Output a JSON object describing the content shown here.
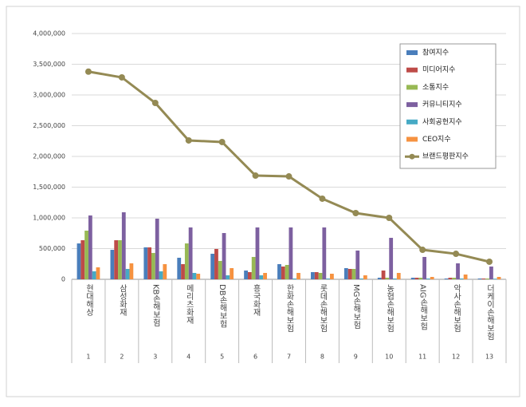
{
  "chart_data": {
    "type": "combo",
    "categories": [
      "현대해상",
      "삼성화재",
      "KB손해보험",
      "메리츠화재",
      "DB손해보험",
      "흥국화재",
      "한화손해보험",
      "롯데손해보험",
      "MG손해보험",
      "농협손해보험",
      "AIG손해보험",
      "악사손해보험",
      "더케이손해보험"
    ],
    "ranks": [
      1,
      2,
      3,
      4,
      5,
      6,
      7,
      8,
      9,
      10,
      11,
      12,
      13
    ],
    "ylim": [
      0,
      4000000
    ],
    "yticks": [
      0,
      {
        "value": 500000,
        "label": "500,000"
      },
      {
        "value": 1000000,
        "label": "1,000,000"
      },
      {
        "value": 1500000,
        "label": "1,500,000"
      },
      {
        "value": 2000000,
        "label": "2,000,000"
      },
      {
        "value": 2500000,
        "label": "2,500,000"
      },
      {
        "value": 3000000,
        "label": "3,000,000"
      },
      {
        "value": 3500000,
        "label": "3,500,000"
      },
      {
        "value": 4000000,
        "label": "4,000,000"
      }
    ],
    "grid": true,
    "legend": "upper right",
    "series": [
      {
        "name": "참여지수",
        "type": "bar",
        "color": "#4a7ebb",
        "values": [
          584000,
          480000,
          520000,
          351000,
          416000,
          143000,
          247000,
          117000,
          182000,
          26000,
          26000,
          13000,
          13000
        ]
      },
      {
        "name": "미디어지수",
        "type": "bar",
        "color": "#be4b48",
        "values": [
          636000,
          636000,
          520000,
          247000,
          494000,
          117000,
          208000,
          117000,
          169000,
          143000,
          26000,
          26000,
          13000
        ]
      },
      {
        "name": "소통지수",
        "type": "bar",
        "color": "#98b954",
        "values": [
          792000,
          636000,
          429000,
          584000,
          299000,
          364000,
          234000,
          104000,
          169000,
          26000,
          26000,
          26000,
          13000
        ]
      },
      {
        "name": "커뮤니티지수",
        "type": "bar",
        "color": "#7d60a0",
        "values": [
          1039000,
          1091000,
          987000,
          844000,
          753000,
          844000,
          844000,
          844000,
          468000,
          675000,
          364000,
          260000,
          208000
        ]
      },
      {
        "name": "사회공헌지수",
        "type": "bar",
        "color": "#46aac5",
        "values": [
          130000,
          169000,
          130000,
          104000,
          65000,
          65000,
          13000,
          13000,
          13000,
          13000,
          13000,
          13000,
          10000
        ]
      },
      {
        "name": "CEO지수",
        "type": "bar",
        "color": "#f69240",
        "values": [
          195000,
          260000,
          247000,
          91000,
          182000,
          104000,
          104000,
          91000,
          65000,
          104000,
          39000,
          78000,
          39000
        ]
      },
      {
        "name": "브랜드평판지수",
        "type": "line",
        "color": "#948a54",
        "values": [
          3380000,
          3286000,
          2870000,
          2260000,
          2234000,
          1688000,
          1675000,
          1312000,
          1078000,
          1000000,
          480000,
          415000,
          286000
        ]
      }
    ]
  }
}
